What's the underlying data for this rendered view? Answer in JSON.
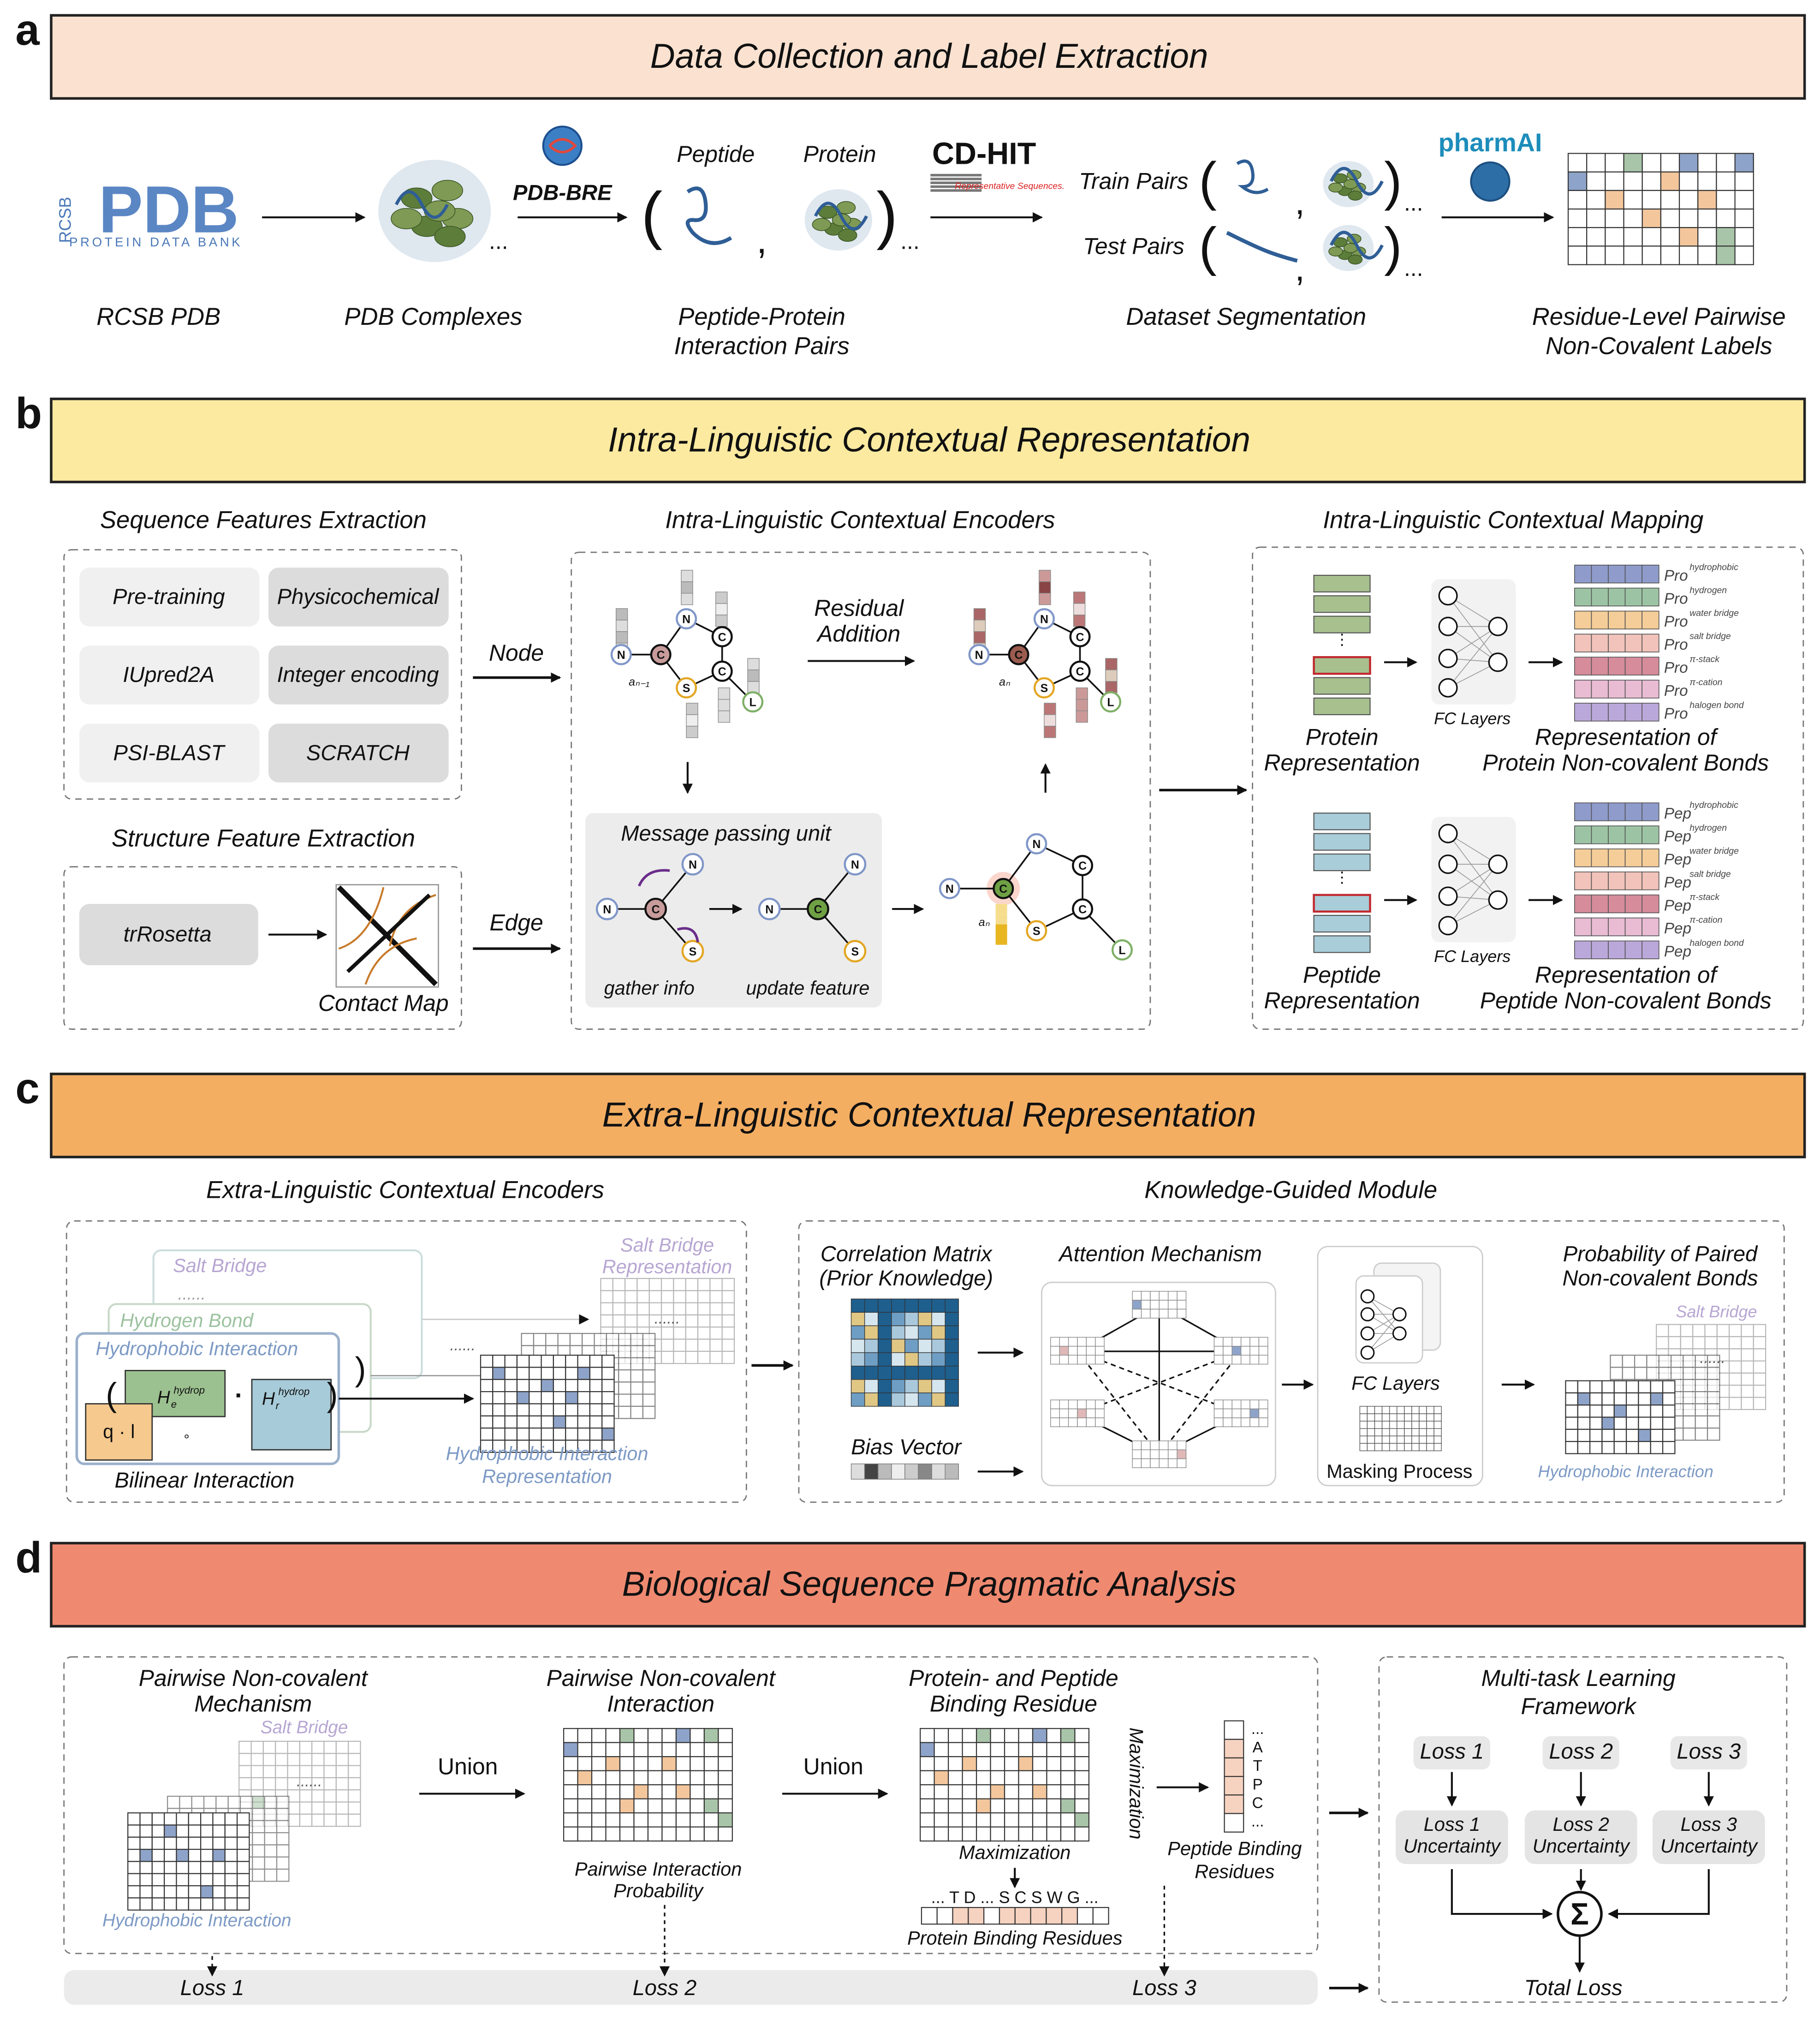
{
  "panels": [
    {
      "label": "a",
      "title": "Data Collection and Label Extraction",
      "logos": {
        "rcsb": "RCSB",
        "pdb": "PDB",
        "pdb_caption": "PROTEIN DATA BANK",
        "pdb_bre": "PDB-BRE",
        "cd_hit": "CD-HIT",
        "cd_hit_caption": "Representative Sequences.",
        "pharmai": "pharmAI"
      },
      "steps": [
        [
          "RCSB PDB"
        ],
        [
          "PDB Complexes"
        ],
        [
          "Peptide-Protein",
          "Interaction Pairs"
        ],
        [
          "Dataset Segmentation"
        ],
        [
          "Residue-Level Pairwise",
          "Non-Covalent Labels"
        ]
      ],
      "pair_labels": [
        "Peptide",
        "Protein"
      ],
      "split_labels": [
        "Train Pairs",
        "Test Pairs"
      ],
      "ellipsis": "..."
    },
    {
      "label": "b",
      "title": "Intra-Linguistic Contextual Representation",
      "sequence": {
        "heading": "Sequence Features Extraction",
        "features": [
          "Pre-training",
          "Physicochemical",
          "IUpred2A",
          "Integer encoding",
          "PSI-BLAST",
          "SCRATCH"
        ]
      },
      "structure": {
        "heading": "Structure Feature Extraction",
        "tool": "trRosetta",
        "output": "Contact Map"
      },
      "node": "Node",
      "edge": "Edge",
      "encoders": {
        "heading": "Intra-Linguistic Contextual Encoders",
        "residual": [
          "Residual",
          "Addition"
        ],
        "message_passing": "Message passing unit",
        "gather": "gather info",
        "update": "update feature",
        "atoms": [
          "N",
          "C",
          "S",
          "L"
        ],
        "node_labels": [
          "aₙ₋₁",
          "aₙ"
        ]
      },
      "mapping": {
        "heading": "Intra-Linguistic Contextual Mapping",
        "fc": "FC Layers",
        "protein": {
          "input": [
            "Protein",
            "Representation"
          ],
          "output": [
            "Representation of",
            "Protein Non-covalent Bonds"
          ],
          "prefix": "Pro"
        },
        "peptide": {
          "input": [
            "Peptide",
            "Representation"
          ],
          "output": [
            "Representation of",
            "Peptide Non-covalent Bonds"
          ],
          "prefix": "Pep"
        },
        "bonds": [
          "hydrophobic",
          "hydrogen",
          "water bridge",
          "salt bridge",
          "π-stack",
          "π-cation",
          "halogen bond"
        ],
        "bond_colors": [
          "#8e9bcb",
          "#9cc4a4",
          "#f4cd98",
          "#f1c3ba",
          "#d68c9b",
          "#e9bcd3",
          "#bba8da"
        ]
      }
    },
    {
      "label": "c",
      "title": "Extra-Linguistic Contextual Representation",
      "encoders": {
        "heading": "Extra-Linguistic Contextual Encoders",
        "layers": [
          "Salt Bridge",
          "Hydrogen Bond",
          "Hydrophobic Interaction"
        ],
        "ellipsis": "......",
        "he": "H",
        "he_sub": "e",
        "hr_sub": "r",
        "hydrop": "hydrop",
        "ql": "q · l",
        "dot": "·",
        "circ": "∘",
        "bilinear": "Bilinear Interaction",
        "salt_rep": [
          "Salt Bridge",
          "Representation"
        ],
        "hydro_rep": [
          "Hydrophobic Interaction",
          "Representation"
        ]
      },
      "module": {
        "heading": "Knowledge-Guided Module",
        "correlation": [
          "Correlation Matrix",
          "(Prior Knowledge)"
        ],
        "bias": "Bias Vector",
        "attention": "Attention Mechanism",
        "fc": "FC Layers",
        "masking": "Masking Process",
        "probability": [
          "Probability of Paired",
          "Non-covalent Bonds"
        ],
        "salt": "Salt Bridge",
        "hydro": "Hydrophobic Interaction"
      }
    },
    {
      "label": "d",
      "title": "Biological Sequence Pragmatic Analysis",
      "mechanism": [
        "Pairwise Non-covalent",
        "Mechanism"
      ],
      "salt": "Salt Bridge",
      "hydro": "Hydrophobic Interaction",
      "ellipsis": "......",
      "union": "Union",
      "interaction": [
        "Pairwise Non-covalent",
        "Interaction"
      ],
      "probability": [
        "Pairwise Interaction",
        "Probability"
      ],
      "binding": [
        "Protein- and Peptide",
        "Binding Residue"
      ],
      "maximization": "Maximization",
      "peptide_residues": [
        "Peptide Binding",
        "Residues"
      ],
      "peptide_seq": [
        "...",
        "A",
        "T",
        "P",
        "C",
        "..."
      ],
      "protein_seq": "... T D ... S C S W G ...",
      "protein_residues": "Protein Binding Residues",
      "multitask": {
        "heading": [
          "Multi-task Learning",
          "Framework"
        ],
        "losses": [
          "Loss 1",
          "Loss 2",
          "Loss 3"
        ],
        "uncertainty": [
          [
            "Loss 1",
            "Uncertainty"
          ],
          [
            "Loss 2",
            "Uncertainty"
          ],
          [
            "Loss 3",
            "Uncertainty"
          ]
        ],
        "sum": "Σ",
        "total": "Total Loss"
      }
    }
  ]
}
